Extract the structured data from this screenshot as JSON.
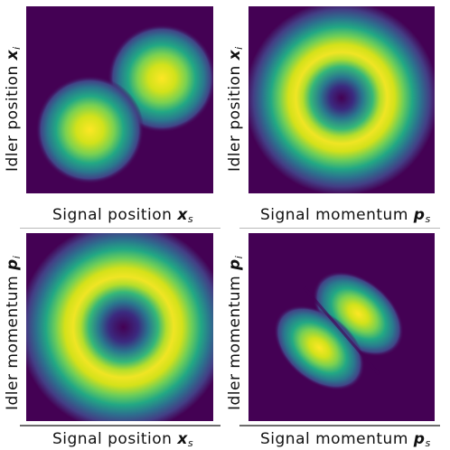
{
  "colors": {
    "colormap": "viridis",
    "background": "#440154",
    "peak": "#fde725"
  },
  "chart_data": [
    {
      "type": "heatmap",
      "xlabel": {
        "text": "Signal position",
        "var": "x",
        "sub": "s"
      },
      "ylabel": {
        "text": "Idler position",
        "var": "x",
        "sub": "i"
      },
      "pattern": "two diagonal lobes (anti-diagonal)",
      "lobes": [
        {
          "x": 0.45,
          "y": 0.42
        },
        {
          "x": -0.45,
          "y": -0.42
        }
      ],
      "value_range": [
        0,
        1
      ]
    },
    {
      "type": "heatmap",
      "xlabel": {
        "text": "Signal momentum",
        "var": "p",
        "sub": "s"
      },
      "ylabel": {
        "text": "Idler position",
        "var": "x",
        "sub": "i"
      },
      "pattern": "ring",
      "ring_radius": 0.45,
      "value_range": [
        0,
        1
      ]
    },
    {
      "type": "heatmap",
      "xlabel": {
        "text": "Signal position",
        "var": "x",
        "sub": "s"
      },
      "ylabel": {
        "text": "Idler momentum",
        "var": "p",
        "sub": "i"
      },
      "pattern": "ring",
      "ring_radius": 0.42,
      "value_range": [
        0,
        1
      ]
    },
    {
      "type": "heatmap",
      "xlabel": {
        "text": "Signal momentum",
        "var": "p",
        "sub": "s"
      },
      "ylabel": {
        "text": "Idler momentum",
        "var": "p",
        "sub": "i"
      },
      "pattern": "two elongated lobes along the diagonal, split by a nodal line",
      "lobes": [
        {
          "x": 0.22,
          "y": 0.2
        },
        {
          "x": -0.22,
          "y": -0.2
        }
      ],
      "value_range": [
        0,
        1
      ]
    }
  ]
}
